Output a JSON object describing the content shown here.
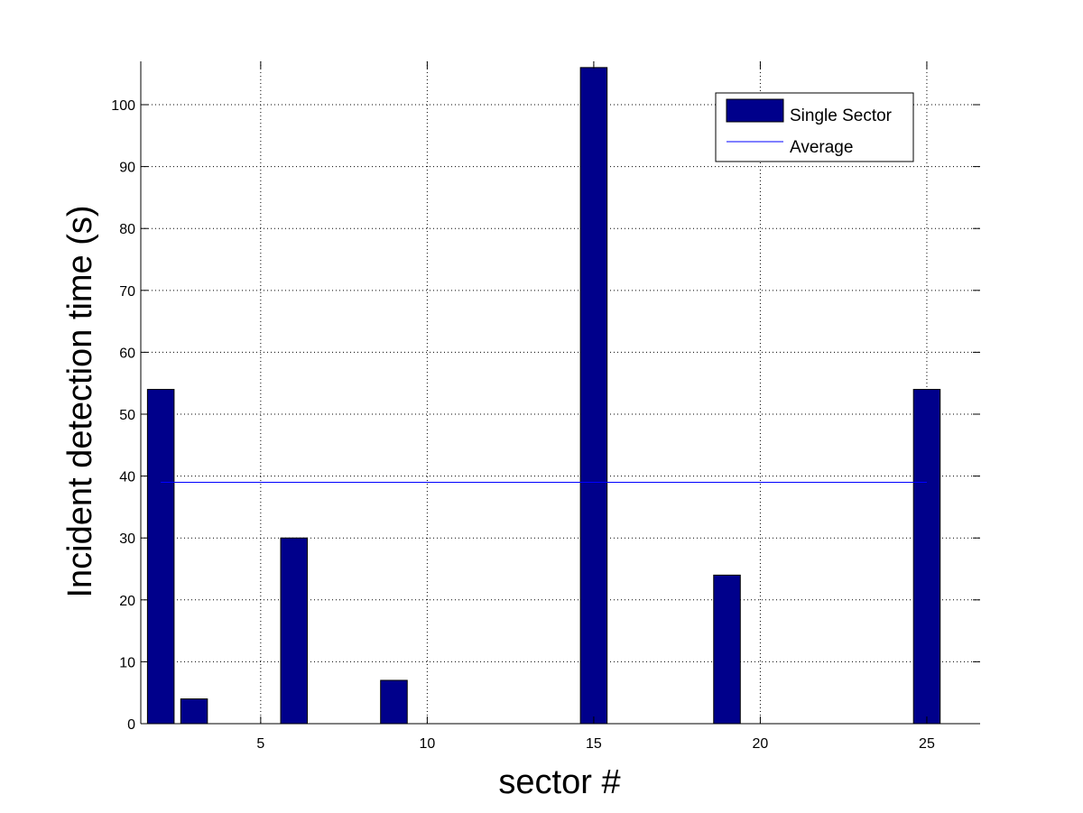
{
  "chart_data": {
    "type": "bar",
    "xlabel": "sector #",
    "ylabel": "Incident detection time (s)",
    "xlim": [
      1.4,
      26.6
    ],
    "ylim": [
      0,
      107
    ],
    "xticks": [
      5,
      10,
      15,
      20,
      25
    ],
    "yticks": [
      0,
      10,
      20,
      30,
      40,
      50,
      60,
      70,
      80,
      90,
      100
    ],
    "grid": true,
    "legend_position": "top-right",
    "series": [
      {
        "name": "Single Sector",
        "kind": "bar",
        "color": "#00008b",
        "x": [
          2,
          3,
          6,
          9,
          15,
          19,
          25
        ],
        "values": [
          54,
          4,
          30,
          7,
          106,
          24,
          54
        ]
      },
      {
        "name": "Average",
        "kind": "line",
        "color": "#0000ff",
        "x": [
          2,
          25
        ],
        "values": [
          39,
          39
        ]
      }
    ]
  }
}
